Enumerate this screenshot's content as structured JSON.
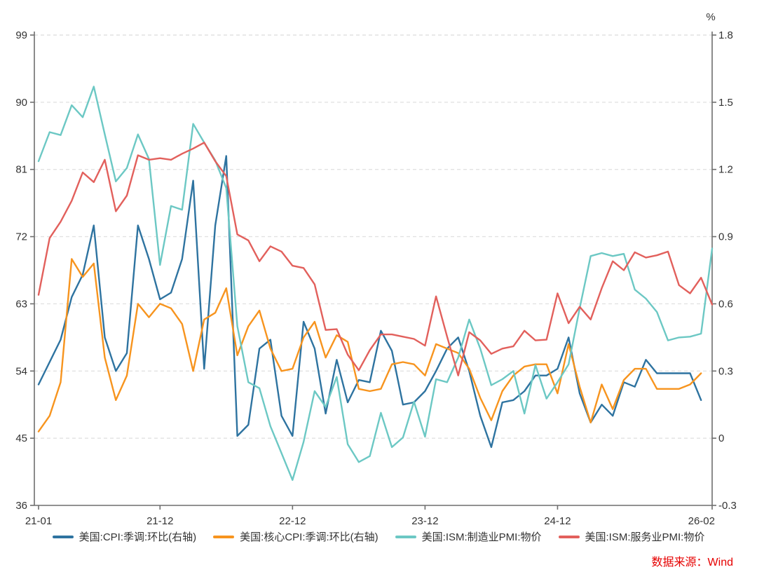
{
  "source": {
    "label": "数据来源：Wind",
    "color": "#e60000"
  },
  "chart_data": {
    "type": "line",
    "title": "",
    "right_axis_unit": "%",
    "left_ylim": [
      36,
      99
    ],
    "right_ylim": [
      -0.3,
      1.8
    ],
    "left_ticks": [
      99,
      90,
      81,
      72,
      63,
      54,
      45,
      36
    ],
    "right_ticks": [
      "1.8",
      "1.5",
      "1.2",
      "0.9",
      "0.6",
      "0.3",
      "0",
      "-0.3"
    ],
    "x_tick_labels": [
      "21-01",
      "21-12",
      "22-12",
      "23-12",
      "24-12",
      "26-02"
    ],
    "x_tick_indices": [
      0,
      11,
      23,
      35,
      47,
      61
    ],
    "grid": "horizontal-dashed",
    "legend_position": "bottom",
    "months": [
      "21-01",
      "21-02",
      "21-03",
      "21-04",
      "21-05",
      "21-06",
      "21-07",
      "21-08",
      "21-09",
      "21-10",
      "21-11",
      "21-12",
      "22-01",
      "22-02",
      "22-03",
      "22-04",
      "22-05",
      "22-06",
      "22-07",
      "22-08",
      "22-09",
      "22-10",
      "22-11",
      "22-12",
      "23-01",
      "23-02",
      "23-03",
      "23-04",
      "23-05",
      "23-06",
      "23-07",
      "23-08",
      "23-09",
      "23-10",
      "23-11",
      "23-12",
      "24-01",
      "24-02",
      "24-03",
      "24-04",
      "24-05",
      "24-06",
      "24-07",
      "24-08",
      "24-09",
      "24-10",
      "24-11",
      "24-12",
      "25-01",
      "25-02",
      "25-03",
      "25-04",
      "25-05",
      "25-06",
      "25-07",
      "25-08",
      "25-09",
      "25-10",
      "25-11",
      "25-12",
      "26-01",
      "26-02"
    ],
    "series": [
      {
        "name": "美国:CPI:季调:环比(右轴)",
        "axis": "right",
        "color": "#2e73a0",
        "values": [
          0.24,
          0.34,
          0.44,
          0.63,
          0.73,
          0.95,
          0.45,
          0.3,
          0.38,
          0.95,
          0.8,
          0.62,
          0.65,
          0.8,
          1.15,
          0.31,
          0.95,
          1.26,
          0.01,
          0.06,
          0.4,
          0.44,
          0.1,
          0.01,
          0.52,
          0.4,
          0.11,
          0.35,
          0.16,
          0.26,
          0.25,
          0.48,
          0.39,
          0.15,
          0.16,
          0.21,
          0.3,
          0.4,
          0.45,
          0.3,
          0.1,
          -0.04,
          0.16,
          0.17,
          0.21,
          0.28,
          0.28,
          0.31,
          0.45,
          0.2,
          0.07,
          0.15,
          0.1,
          0.25,
          0.23,
          0.35,
          0.29,
          0.29,
          0.29,
          0.29,
          0.17,
          null
        ]
      },
      {
        "name": "美国:核心CPI:季调:环比(右轴)",
        "axis": "right",
        "color": "#f7941e",
        "values": [
          0.03,
          0.1,
          0.25,
          0.8,
          0.72,
          0.78,
          0.36,
          0.17,
          0.28,
          0.6,
          0.54,
          0.6,
          0.58,
          0.51,
          0.3,
          0.53,
          0.56,
          0.67,
          0.37,
          0.5,
          0.57,
          0.4,
          0.3,
          0.31,
          0.45,
          0.52,
          0.36,
          0.46,
          0.43,
          0.22,
          0.21,
          0.22,
          0.33,
          0.34,
          0.33,
          0.28,
          0.42,
          0.4,
          0.38,
          0.31,
          0.18,
          0.08,
          0.21,
          0.28,
          0.32,
          0.33,
          0.33,
          0.2,
          0.42,
          0.23,
          0.07,
          0.24,
          0.13,
          0.26,
          0.31,
          0.31,
          0.22,
          0.22,
          0.22,
          0.24,
          0.29,
          null
        ]
      },
      {
        "name": "美国:ISM:制造业PMI:物价",
        "axis": "left",
        "color": "#6cc8c4",
        "values": [
          82.1,
          86.0,
          85.6,
          89.6,
          88.0,
          92.1,
          85.7,
          79.4,
          81.2,
          85.7,
          82.4,
          68.2,
          76.1,
          75.6,
          87.1,
          84.6,
          82.2,
          78.5,
          60.0,
          52.5,
          51.7,
          46.6,
          43.0,
          39.4,
          44.5,
          51.3,
          49.2,
          53.2,
          44.2,
          41.8,
          42.6,
          48.4,
          43.8,
          45.1,
          49.9,
          45.2,
          52.9,
          52.5,
          55.8,
          60.9,
          57.0,
          52.1,
          52.9,
          54.0,
          48.3,
          54.8,
          50.3,
          52.5,
          54.9,
          62.4,
          69.4,
          69.8,
          69.4,
          69.7,
          64.9,
          63.7,
          61.9,
          58.1,
          58.5,
          58.6,
          59.0,
          70.4
        ]
      },
      {
        "name": "美国:ISM:服务业PMI:物价",
        "axis": "left",
        "color": "#e2605c",
        "values": [
          64.2,
          71.8,
          74.0,
          76.8,
          80.6,
          79.3,
          82.3,
          75.4,
          77.5,
          82.9,
          82.3,
          82.5,
          82.3,
          83.1,
          83.8,
          84.6,
          82.1,
          80.1,
          72.3,
          71.5,
          68.7,
          70.7,
          70.0,
          68.1,
          67.8,
          65.6,
          59.5,
          59.6,
          56.2,
          54.1,
          56.8,
          58.9,
          58.9,
          58.6,
          58.3,
          57.4,
          64.0,
          58.6,
          53.4,
          59.2,
          58.1,
          56.3,
          57.0,
          57.3,
          59.4,
          58.1,
          58.2,
          64.4,
          60.4,
          62.6,
          60.9,
          65.1,
          68.7,
          67.5,
          69.9,
          69.2,
          69.5,
          70.0,
          65.5,
          64.4,
          66.5,
          62.9
        ]
      }
    ],
    "styles": {
      "axis_color": "#6e6e6e",
      "tick_text_color": "#333333",
      "gridline_color": "#e2e2e2",
      "line_width": 2.4
    }
  }
}
